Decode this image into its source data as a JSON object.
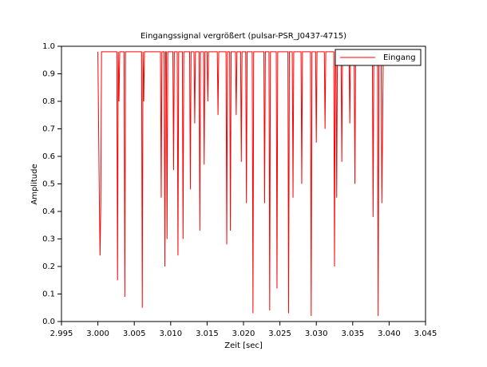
{
  "chart_data": {
    "type": "line",
    "title": "Eingangssignal vergrößert (pulsar-PSR_J0437-4715)",
    "x_label": "Zeit [sec]",
    "y_label": "Amplitude",
    "x": [
      3.0,
      3.0002,
      3.0003,
      3.0004,
      3.0005,
      3.0026,
      3.0027,
      3.0028,
      3.0029,
      3.003,
      3.0036,
      3.0037,
      3.0038,
      3.006,
      3.0061,
      3.0062,
      3.0063,
      3.0064,
      3.0086,
      3.0087,
      3.0088,
      3.0091,
      3.0092,
      3.0093,
      3.0094,
      3.0095,
      3.0096,
      3.0103,
      3.0104,
      3.0105,
      3.0109,
      3.011,
      3.0111,
      3.0116,
      3.0117,
      3.0118,
      3.0126,
      3.0127,
      3.0128,
      3.0132,
      3.0133,
      3.0134,
      3.0139,
      3.014,
      3.0141,
      3.0145,
      3.0146,
      3.0147,
      3.015,
      3.0151,
      3.0152,
      3.0164,
      3.0165,
      3.0166,
      3.0176,
      3.0177,
      3.0178,
      3.0181,
      3.0182,
      3.0183,
      3.0189,
      3.019,
      3.0191,
      3.0196,
      3.0197,
      3.0198,
      3.0203,
      3.0204,
      3.0205,
      3.0212,
      3.0213,
      3.0214,
      3.0228,
      3.0229,
      3.023,
      3.0235,
      3.0236,
      3.0237,
      3.0245,
      3.0246,
      3.0247,
      3.0261,
      3.0262,
      3.0263,
      3.0267,
      3.0268,
      3.0269,
      3.0279,
      3.028,
      3.0281,
      3.0292,
      3.0293,
      3.0294,
      3.0299,
      3.03,
      3.0301,
      3.0311,
      3.0312,
      3.0313,
      3.0324,
      3.0325,
      3.0326,
      3.0327,
      3.0328,
      3.0329,
      3.0334,
      3.0335,
      3.0336,
      3.0345,
      3.0346,
      3.0347,
      3.0352,
      3.0353,
      3.0354,
      3.0377,
      3.0378,
      3.0379,
      3.0384,
      3.0385,
      3.0386,
      3.0389,
      3.039,
      3.0392
    ],
    "series": [
      {
        "name": "Eingang",
        "color": "#ff0000",
        "values": [
          0.98,
          0.45,
          0.24,
          0.43,
          0.98,
          0.98,
          0.15,
          0.98,
          0.8,
          0.98,
          0.98,
          0.09,
          0.98,
          0.98,
          0.05,
          0.98,
          0.8,
          0.98,
          0.98,
          0.45,
          0.98,
          0.98,
          0.2,
          0.98,
          0.98,
          0.3,
          0.98,
          0.98,
          0.55,
          0.98,
          0.98,
          0.24,
          0.98,
          0.98,
          0.3,
          0.98,
          0.98,
          0.48,
          0.98,
          0.98,
          0.72,
          0.98,
          0.98,
          0.33,
          0.98,
          0.98,
          0.57,
          0.98,
          0.98,
          0.8,
          0.98,
          0.98,
          0.75,
          0.98,
          0.98,
          0.28,
          0.98,
          0.98,
          0.33,
          0.98,
          0.98,
          0.75,
          0.98,
          0.98,
          0.58,
          0.98,
          0.98,
          0.43,
          0.98,
          0.98,
          0.03,
          0.98,
          0.98,
          0.43,
          0.98,
          0.98,
          0.04,
          0.98,
          0.98,
          0.12,
          0.98,
          0.98,
          0.03,
          0.98,
          0.98,
          0.45,
          0.98,
          0.98,
          0.5,
          0.98,
          0.98,
          0.02,
          0.98,
          0.98,
          0.65,
          0.98,
          0.98,
          0.7,
          0.98,
          0.98,
          0.2,
          0.98,
          0.98,
          0.45,
          0.98,
          0.98,
          0.58,
          0.98,
          0.98,
          0.72,
          0.98,
          0.98,
          0.5,
          0.98,
          0.98,
          0.38,
          0.98,
          0.98,
          0.02,
          0.98,
          0.98,
          0.43,
          0.98
        ]
      }
    ],
    "xlim": [
      2.995,
      3.045
    ],
    "xticks": [
      {
        "value": 2.995,
        "label": "2.995"
      },
      {
        "value": 3.0,
        "label": "3.000"
      },
      {
        "value": 3.005,
        "label": "3.005"
      },
      {
        "value": 3.01,
        "label": "3.010"
      },
      {
        "value": 3.015,
        "label": "3.015"
      },
      {
        "value": 3.02,
        "label": "3.020"
      },
      {
        "value": 3.025,
        "label": "3.025"
      },
      {
        "value": 3.03,
        "label": "3.030"
      },
      {
        "value": 3.035,
        "label": "3.035"
      },
      {
        "value": 3.04,
        "label": "3.040"
      },
      {
        "value": 3.045,
        "label": "3.045"
      }
    ],
    "ylim": [
      0,
      1
    ],
    "yticks": [
      {
        "value": 0,
        "label": "0.0"
      },
      0.1,
      0.2,
      0.3,
      0.4,
      0.5,
      0.6,
      0.7,
      0.8,
      0.9,
      {
        "value": 1,
        "label": "1.0"
      }
    ],
    "legend": "upper right",
    "grid": false
  }
}
